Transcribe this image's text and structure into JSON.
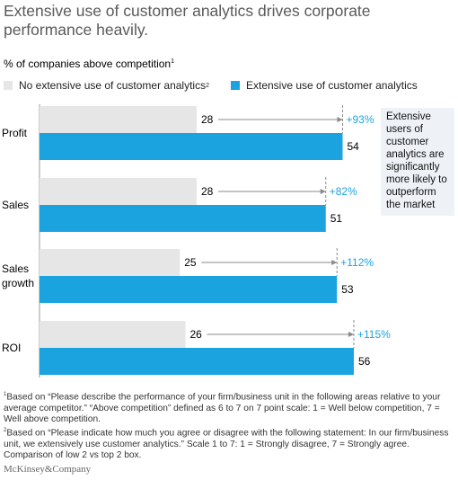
{
  "title": "Extensive use of customer analytics drives corporate performance heavily.",
  "subtitle": "% of companies above competition",
  "subtitle_mark": "1",
  "legend": [
    {
      "label": "No extensive use of customer analytics",
      "mark": "2",
      "color": "#e6e6e6"
    },
    {
      "label": "Extensive use of customer analytics",
      "mark": "",
      "color": "#1ba3e0"
    }
  ],
  "callout": "Extensive users of customer analytics are significantly more likely to outperform the market",
  "footnotes": [
    {
      "mark": "1",
      "text": "Based on “Please describe the performance of your firm/business unit in the following areas relative to your average competitor.” “Above competition” defined as 6 to 7 on 7 point scale: 1 = Well below competition, 7 = Well above competition."
    },
    {
      "mark": "2",
      "text": "Based on “Please indicate how much you agree or disagree with the following statement: In our firm/business unit, we extensively use customer analytics.” Scale 1 to 7: 1 = Strongly disagree, 7 = Strongly agree. Comparison of low 2 vs top 2 box."
    }
  ],
  "brand": "McKinsey&Company",
  "chart_data": {
    "type": "bar",
    "orientation": "horizontal",
    "title": "Extensive use of customer analytics drives corporate performance heavily.",
    "categories": [
      "Profit",
      "Sales",
      "Sales growth",
      "ROI"
    ],
    "series": [
      {
        "name": "No extensive use of customer analytics",
        "values": [
          28,
          28,
          25,
          26
        ],
        "color": "#e6e6e6"
      },
      {
        "name": "Extensive use of customer analytics",
        "values": [
          54,
          51,
          53,
          56
        ],
        "color": "#1ba3e0"
      }
    ],
    "annotations": [
      "+93%",
      "+82%",
      "+112%",
      "+115%"
    ],
    "annotation_color": "#1ba3e0",
    "xlim": [
      0,
      56
    ],
    "grid": false
  }
}
